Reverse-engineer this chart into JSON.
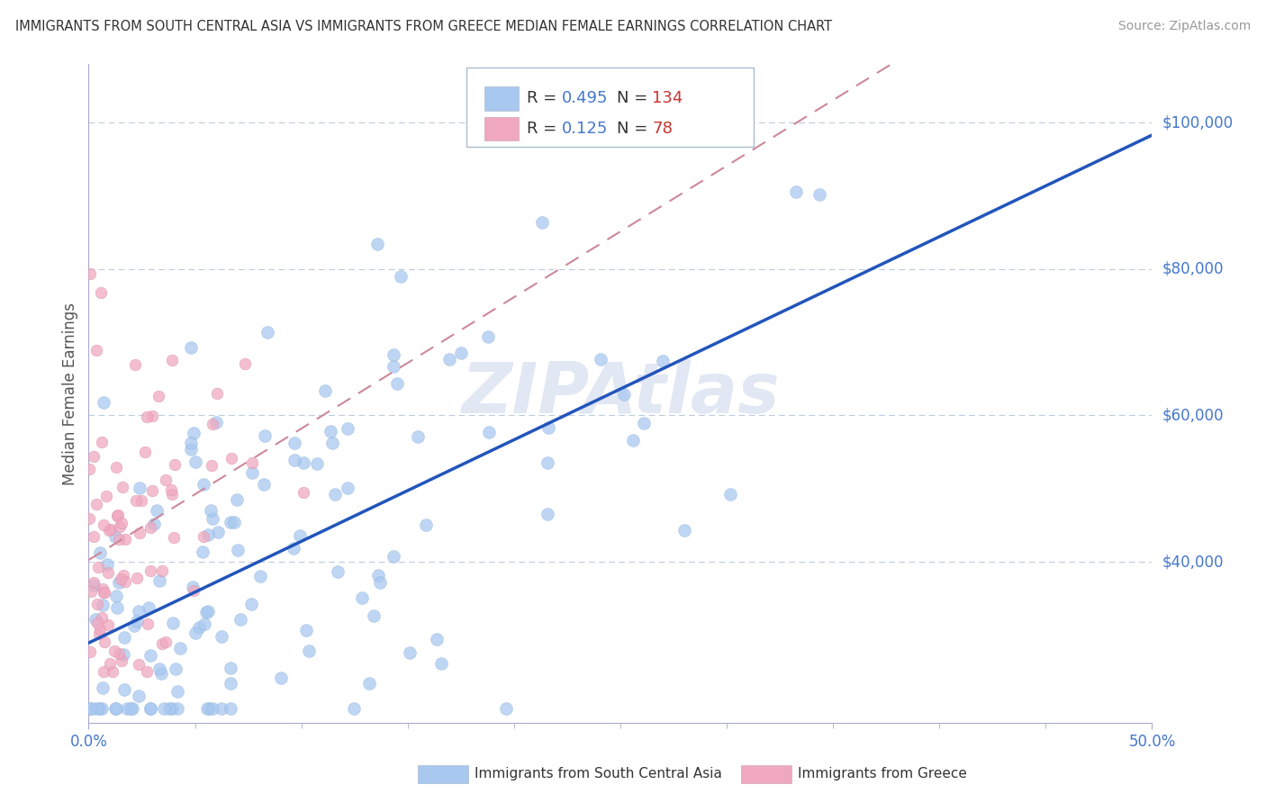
{
  "title": "IMMIGRANTS FROM SOUTH CENTRAL ASIA VS IMMIGRANTS FROM GREECE MEDIAN FEMALE EARNINGS CORRELATION CHART",
  "source": "Source: ZipAtlas.com",
  "ylabel": "Median Female Earnings",
  "ytick_labels": [
    "$40,000",
    "$60,000",
    "$80,000",
    "$100,000"
  ],
  "ytick_values": [
    40000,
    60000,
    80000,
    100000
  ],
  "series1_label": "Immigrants from South Central Asia",
  "series1_color": "#a8c8f0",
  "series1_edge": "#85aad4",
  "series1_R": 0.495,
  "series1_N": 134,
  "series2_label": "Immigrants from Greece",
  "series2_color": "#f0a8c0",
  "series2_edge": "#d485a0",
  "series2_R": 0.125,
  "series2_N": 78,
  "trend1_color": "#2255bb",
  "trend2_color": "#cc8899",
  "watermark": "ZIPAtlas",
  "background_color": "#ffffff",
  "grid_color": "#bbccdd",
  "xlim": [
    0.0,
    0.5
  ],
  "ylim": [
    18000,
    108000
  ],
  "title_color": "#333333",
  "source_color": "#999999",
  "right_label_color": "#4477cc",
  "xtick_color": "#4477cc",
  "legend_R_color": "#4477cc",
  "legend_N_color": "#cc3333",
  "legend_text_color": "#333333"
}
